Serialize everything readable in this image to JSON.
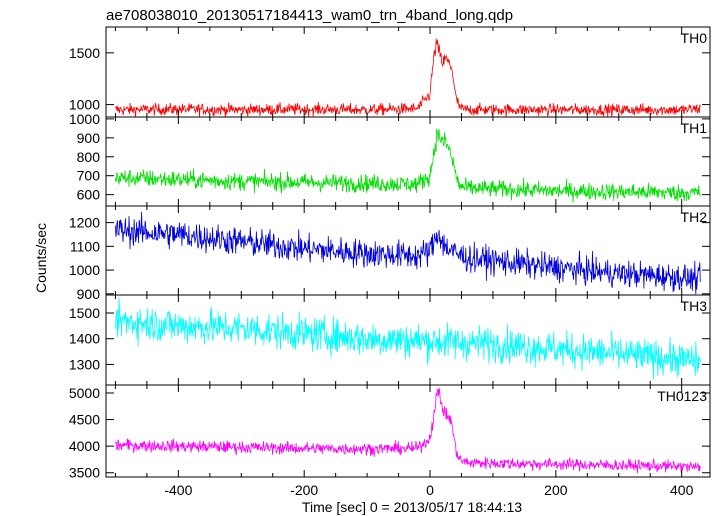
{
  "chart_data": {
    "type": "line",
    "title": "ae708038010_20130517184413_wam0_trn_4band_long.qdp",
    "xlabel": "Time [sec] 0 = 2013/05/17 18:44:13",
    "ylabel": "Counts/sec",
    "xlim": [
      -515,
      445
    ],
    "x_ticks": [
      -400,
      -200,
      0,
      200,
      400
    ],
    "grid": false,
    "panels": [
      {
        "name": "TH0",
        "color": "#ff0000",
        "ylim": [
          880,
          1750
        ],
        "y_ticks": [
          1000,
          1500
        ],
        "series": {
          "x": [
            -500,
            -400,
            -300,
            -200,
            -100,
            -20,
            0,
            5,
            10,
            15,
            20,
            25,
            30,
            35,
            40,
            45,
            50,
            60,
            100,
            200,
            300,
            400,
            430
          ],
          "y": [
            950,
            955,
            950,
            955,
            950,
            960,
            1100,
            1400,
            1600,
            1500,
            1400,
            1450,
            1400,
            1350,
            1100,
            1000,
            960,
            950,
            950,
            950,
            950,
            950,
            960
          ]
        }
      },
      {
        "name": "TH1",
        "color": "#00e000",
        "ylim": [
          540,
          1010
        ],
        "y_ticks": [
          600,
          700,
          800,
          900,
          1000
        ],
        "series": {
          "x": [
            -500,
            -400,
            -300,
            -200,
            -100,
            -20,
            0,
            5,
            10,
            15,
            20,
            25,
            30,
            35,
            40,
            45,
            50,
            60,
            100,
            200,
            300,
            400,
            430
          ],
          "y": [
            690,
            680,
            670,
            665,
            660,
            655,
            700,
            800,
            900,
            920,
            870,
            880,
            840,
            790,
            720,
            660,
            640,
            635,
            630,
            620,
            615,
            610,
            610
          ]
        }
      },
      {
        "name": "TH2",
        "color": "#0000dd",
        "ylim": [
          895,
          1270
        ],
        "y_ticks": [
          900,
          1000,
          1100,
          1200
        ],
        "series": {
          "x": [
            -500,
            -400,
            -300,
            -200,
            -100,
            -20,
            0,
            10,
            15,
            20,
            30,
            40,
            60,
            100,
            200,
            300,
            400,
            430
          ],
          "y": [
            1170,
            1150,
            1120,
            1090,
            1070,
            1060,
            1080,
            1140,
            1160,
            1110,
            1090,
            1070,
            1050,
            1040,
            1010,
            985,
            970,
            960
          ]
        }
      },
      {
        "name": "TH3",
        "color": "#00ffff",
        "ylim": [
          1220,
          1570
        ],
        "y_ticks": [
          1300,
          1400,
          1500
        ],
        "series": {
          "x": [
            -500,
            -400,
            -300,
            -200,
            -100,
            0,
            100,
            200,
            300,
            400,
            430
          ],
          "y": [
            1470,
            1450,
            1440,
            1420,
            1400,
            1390,
            1380,
            1360,
            1340,
            1320,
            1310
          ]
        }
      },
      {
        "name": "TH0123",
        "color": "#ff00ff",
        "ylim": [
          3420,
          5150
        ],
        "y_ticks": [
          3500,
          4000,
          4500,
          5000
        ],
        "series": {
          "x": [
            -500,
            -400,
            -300,
            -200,
            -100,
            -20,
            0,
            5,
            10,
            15,
            20,
            25,
            30,
            35,
            40,
            45,
            50,
            60,
            100,
            200,
            300,
            400,
            430
          ],
          "y": [
            4020,
            4000,
            3980,
            3960,
            3950,
            3960,
            4150,
            4500,
            4950,
            5000,
            4700,
            4600,
            4550,
            4400,
            4000,
            3800,
            3720,
            3690,
            3680,
            3660,
            3640,
            3620,
            3600
          ]
        }
      }
    ]
  }
}
